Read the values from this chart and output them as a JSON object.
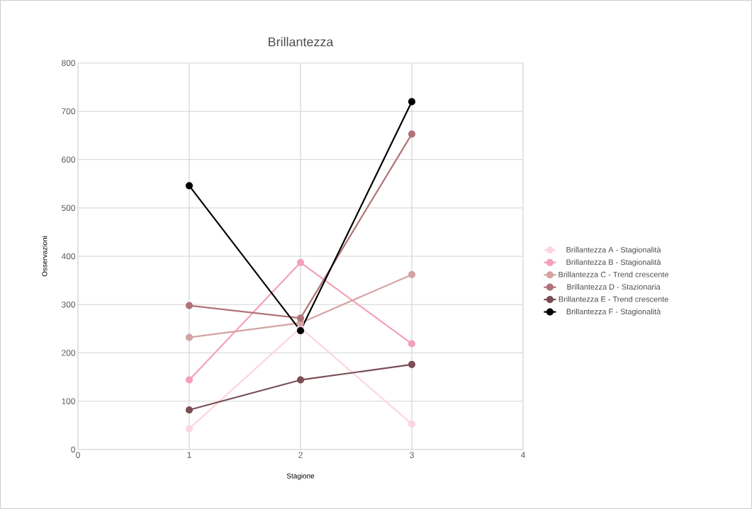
{
  "chart_data": {
    "type": "line",
    "title": "Brillantezza",
    "xlabel": "Stagione",
    "ylabel": "Osservazioni",
    "x": [
      1,
      2,
      3
    ],
    "series": [
      {
        "name": "Brillantezza A - Stagionalità",
        "color": "#fcd5e0",
        "values": [
          43,
          252,
          53
        ]
      },
      {
        "name": "Brillantezza B - Stagionalità",
        "color": "#f4a0b9",
        "values": [
          144,
          387,
          219
        ]
      },
      {
        "name": "Brillantezza C - Trend crescente",
        "color": "#d4a3a3",
        "values": [
          232,
          262,
          362
        ]
      },
      {
        "name": "Brillantezza D - Stazionaria",
        "color": "#b07378",
        "values": [
          298,
          272,
          653
        ]
      },
      {
        "name": "Brillantezza E - Trend crescente",
        "color": "#7a4e55",
        "values": [
          82,
          144,
          176
        ]
      },
      {
        "name": "Brillantezza F - Stagionalità",
        "color": "#000000",
        "values": [
          546,
          246,
          720
        ]
      }
    ],
    "xlim": [
      0,
      4
    ],
    "xticks": [
      0,
      1,
      2,
      3,
      4
    ],
    "ylim": [
      0,
      800
    ],
    "yticks": [
      0,
      100,
      200,
      300,
      400,
      500,
      600,
      700,
      800
    ],
    "grid": true,
    "legend": "right",
    "marker": "circle",
    "line_style": "solid"
  }
}
